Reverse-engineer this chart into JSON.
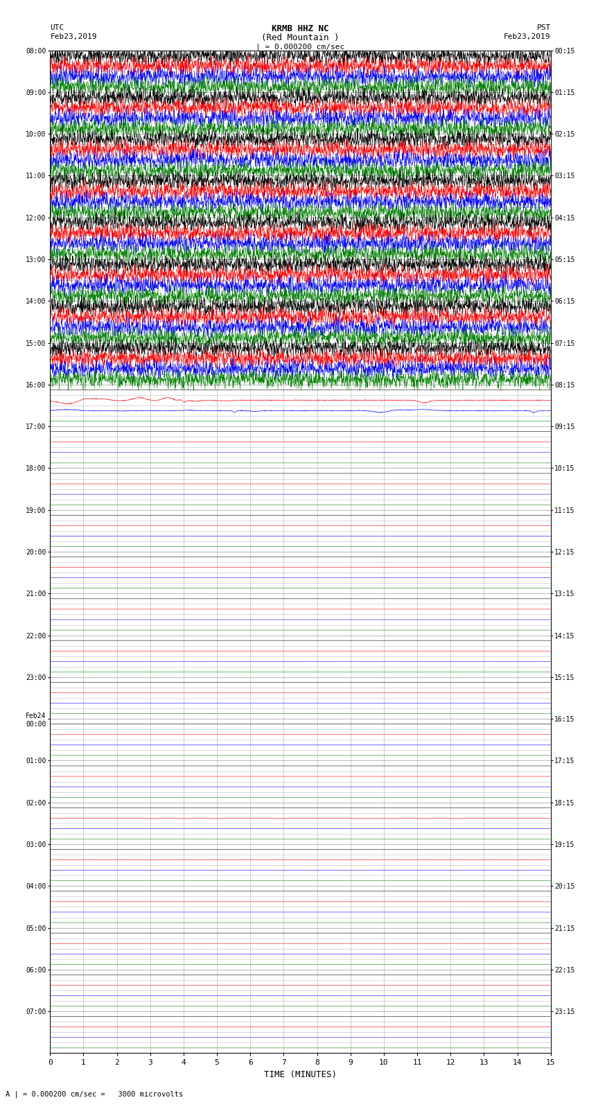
{
  "title_line1": "KRMB HHZ NC",
  "title_line2": "(Red Mountain )",
  "scale_label": "| = 0.000200 cm/sec",
  "utc_label": "UTC",
  "utc_date": "Feb23,2019",
  "pst_label": "PST",
  "pst_date": "Feb23,2019",
  "xlabel": "TIME (MINUTES)",
  "footer": "A | = 0.000200 cm/sec =   3000 microvolts",
  "xlim": [
    0,
    15
  ],
  "xmin": 0,
  "xmax": 15,
  "xticks": [
    0,
    1,
    2,
    3,
    4,
    5,
    6,
    7,
    8,
    9,
    10,
    11,
    12,
    13,
    14,
    15
  ],
  "figsize": [
    8.5,
    16.13
  ],
  "dpi": 100,
  "bg_color": "#ffffff",
  "trace_colors": [
    "black",
    "red",
    "blue",
    "green"
  ],
  "utc_times_left": [
    "08:00",
    "09:00",
    "10:00",
    "11:00",
    "12:00",
    "13:00",
    "14:00",
    "15:00",
    "16:00",
    "17:00",
    "18:00",
    "19:00",
    "20:00",
    "21:00",
    "22:00",
    "23:00",
    "Feb24\n00:00",
    "01:00",
    "02:00",
    "03:00",
    "04:00",
    "05:00",
    "06:00",
    "07:00"
  ],
  "pst_times_right": [
    "00:15",
    "01:15",
    "02:15",
    "03:15",
    "04:15",
    "05:15",
    "06:15",
    "07:15",
    "08:15",
    "09:15",
    "10:15",
    "11:15",
    "12:15",
    "13:15",
    "14:15",
    "15:15",
    "16:15",
    "17:15",
    "18:15",
    "19:15",
    "20:15",
    "21:15",
    "22:15",
    "23:15"
  ],
  "n_rows": 24,
  "n_active_rows": 8,
  "n_semi_active_rows": 1,
  "grid_color": "#bbbbbb",
  "noise_seed": 42
}
